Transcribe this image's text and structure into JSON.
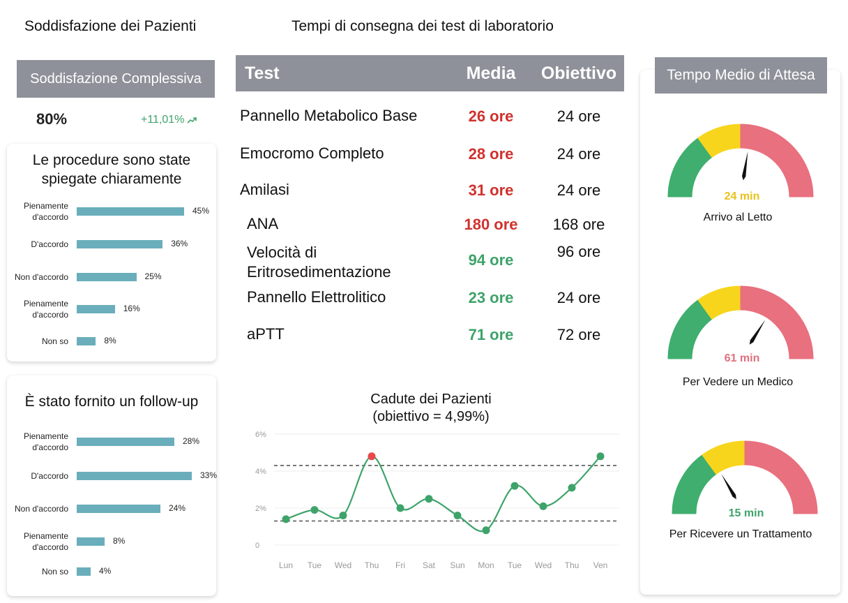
{
  "satisfaction": {
    "title": "Soddisfazione dei Pazienti",
    "overall_header": "Soddisfazione Complessiva",
    "overall_value": "80%",
    "overall_change": "+11,01%",
    "change_icon": "trend-up-icon",
    "panels": [
      {
        "title_line1": "Le procedure sono state",
        "title_line2": "spiegate chiaramente",
        "rows": [
          {
            "label_line1": "Pienamente",
            "label_line2": "d'accordo",
            "value": 45,
            "value_label": "45%"
          },
          {
            "label_line1": "D'accordo",
            "label_line2": "",
            "value": 36,
            "value_label": "36%"
          },
          {
            "label_line1": "Non d'accordo",
            "label_line2": "",
            "value": 25,
            "value_label": "25%"
          },
          {
            "label_line1": "Pienamente",
            "label_line2": "d'accordo",
            "value": 16,
            "value_label": "16%"
          },
          {
            "label_line1": "Non so",
            "label_line2": "",
            "value": 8,
            "value_label": "8%"
          }
        ]
      },
      {
        "title_line1": "È stato fornito un follow-up",
        "title_line2": "",
        "rows": [
          {
            "label_line1": "Pienamente",
            "label_line2": "d'accordo",
            "value": 28,
            "value_label": "28%"
          },
          {
            "label_line1": "D'accordo",
            "label_line2": "",
            "value": 33,
            "value_label": "33%"
          },
          {
            "label_line1": "Non d'accordo",
            "label_line2": "",
            "value": 24,
            "value_label": "24%"
          },
          {
            "label_line1": "Pienamente",
            "label_line2": "d'accordo",
            "value": 8,
            "value_label": "8%"
          },
          {
            "label_line1": "Non so",
            "label_line2": "",
            "value": 4,
            "value_label": "4%"
          }
        ]
      }
    ]
  },
  "lab": {
    "title": "Tempi di consegna dei test di laboratorio",
    "col_test": "Test",
    "col_media": "Media",
    "col_target": "Obiettivo",
    "rows": [
      {
        "name_line1": "Pannello Metabolico Base",
        "name_line2": "",
        "media": "26 ore",
        "target": "24 ore",
        "status": "red"
      },
      {
        "name_line1": "Emocromo Completo",
        "name_line2": "",
        "media": "28 ore",
        "target": "24 ore",
        "status": "red"
      },
      {
        "name_line1": "Amilasi",
        "name_line2": "",
        "media": "31 ore",
        "target": "24 ore",
        "status": "red"
      },
      {
        "name_line1": "ANA",
        "name_line2": "",
        "media": "180 ore",
        "target": "168 ore",
        "status": "red"
      },
      {
        "name_line1": "Velocità di",
        "name_line2": "Eritrosedimentazione",
        "media": "94 ore",
        "target": "96 ore",
        "status": "green"
      },
      {
        "name_line1": "Pannello Elettrolitico",
        "name_line2": "",
        "media": "23 ore",
        "target": "24 ore",
        "status": "green"
      },
      {
        "name_line1": "aPTT",
        "name_line2": "",
        "media": "71 ore",
        "target": "72 ore",
        "status": "green"
      }
    ]
  },
  "chart_data": {
    "type": "line",
    "title_line1": "Cadute dei Pazienti",
    "title_line2": "(obiettivo = 4,99%)",
    "categories": [
      "Lun",
      "Tue",
      "Wed",
      "Thu",
      "Fri",
      "Sat",
      "Sun",
      "Mon",
      "Tue",
      "Wed",
      "Thu",
      "Ven"
    ],
    "values": [
      1.4,
      1.9,
      1.6,
      4.8,
      2.0,
      2.5,
      1.6,
      0.8,
      3.2,
      2.1,
      3.1,
      4.8
    ],
    "ylim": [
      0,
      6
    ],
    "y_ticks": [
      "6%",
      "4%",
      "2%",
      "0"
    ],
    "y_tick_values": [
      6,
      4,
      2,
      0
    ],
    "reference_lines": [
      4.3,
      1.3
    ],
    "highlight_index": 3,
    "point_color": "#3ea36a",
    "highlight_color": "#e8484a",
    "line_color": "#3ea36a"
  },
  "wait": {
    "header": "Tempo Medio di Attesa",
    "gauges": [
      {
        "value": 24,
        "value_label": "24 min",
        "label": "Arrivo al Letto",
        "value_color": "#e8c21a",
        "needle_fraction": 0.55
      },
      {
        "value": 61,
        "value_label": "61 min",
        "label": "Per Vedere un Medico",
        "value_color": "#e0707e",
        "needle_fraction": 0.68
      },
      {
        "value": 15,
        "value_label": "15 min",
        "label": "Per Ricevere un Trattamento",
        "value_color": "#3ea36a",
        "needle_fraction": 0.33
      }
    ],
    "colors": {
      "green": "#3fae6e",
      "yellow": "#f7d51d",
      "red": "#e8707f"
    }
  }
}
